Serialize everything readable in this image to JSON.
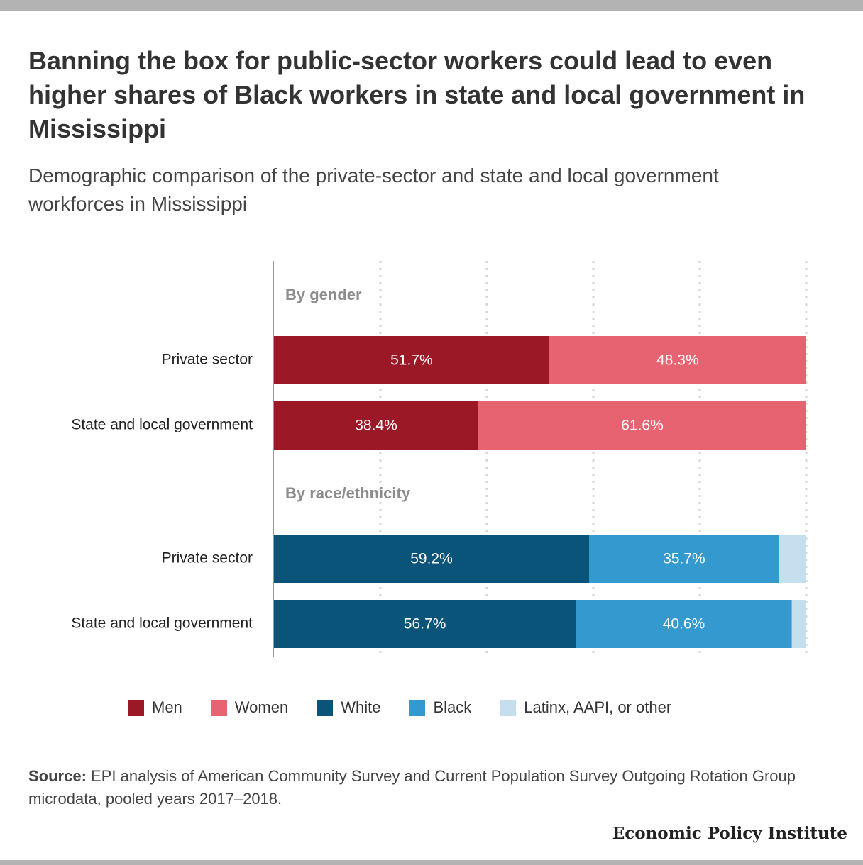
{
  "title": "Banning the box for public-sector workers could lead to even higher shares of Black workers in state and local government in Mississippi",
  "subtitle": "Demographic comparison of the private-sector and state and local government workforces in Mississippi",
  "source_label": "Source:",
  "source_text": "EPI analysis of American Community Survey and Current Population Survey Outgoing Rotation Group microdata, pooled years 2017–2018.",
  "brand": "Economic Policy Institute",
  "chart_data": {
    "type": "bar",
    "orientation": "horizontal",
    "stacked": true,
    "xlim": [
      0,
      100
    ],
    "grid": true,
    "legend_position": "bottom",
    "groups": [
      {
        "label": "By gender",
        "rows": [
          {
            "label": "Private sector",
            "segments": [
              {
                "series": "Men",
                "value": 51.7,
                "label": "51.7%"
              },
              {
                "series": "Women",
                "value": 48.3,
                "label": "48.3%"
              }
            ]
          },
          {
            "label": "State and local government",
            "segments": [
              {
                "series": "Men",
                "value": 38.4,
                "label": "38.4%"
              },
              {
                "series": "Women",
                "value": 61.6,
                "label": "61.6%"
              }
            ]
          }
        ]
      },
      {
        "label": "By race/ethnicity",
        "rows": [
          {
            "label": "Private sector",
            "segments": [
              {
                "series": "White",
                "value": 59.2,
                "label": "59.2%"
              },
              {
                "series": "Black",
                "value": 35.7,
                "label": "35.7%"
              },
              {
                "series": "Latinx, AAPI, or other",
                "value": 5.1,
                "label": ""
              }
            ]
          },
          {
            "label": "State and local government",
            "segments": [
              {
                "series": "White",
                "value": 56.7,
                "label": "56.7%"
              },
              {
                "series": "Black",
                "value": 40.6,
                "label": "40.6%"
              },
              {
                "series": "Latinx, AAPI, or other",
                "value": 2.7,
                "label": ""
              }
            ]
          }
        ]
      }
    ],
    "series": [
      {
        "name": "Men",
        "color": "#9b1826"
      },
      {
        "name": "Women",
        "color": "#e86372"
      },
      {
        "name": "White",
        "color": "#0b5479"
      },
      {
        "name": "Black",
        "color": "#3399cf"
      },
      {
        "name": "Latinx, AAPI, or other",
        "color": "#c5dfee"
      }
    ]
  }
}
